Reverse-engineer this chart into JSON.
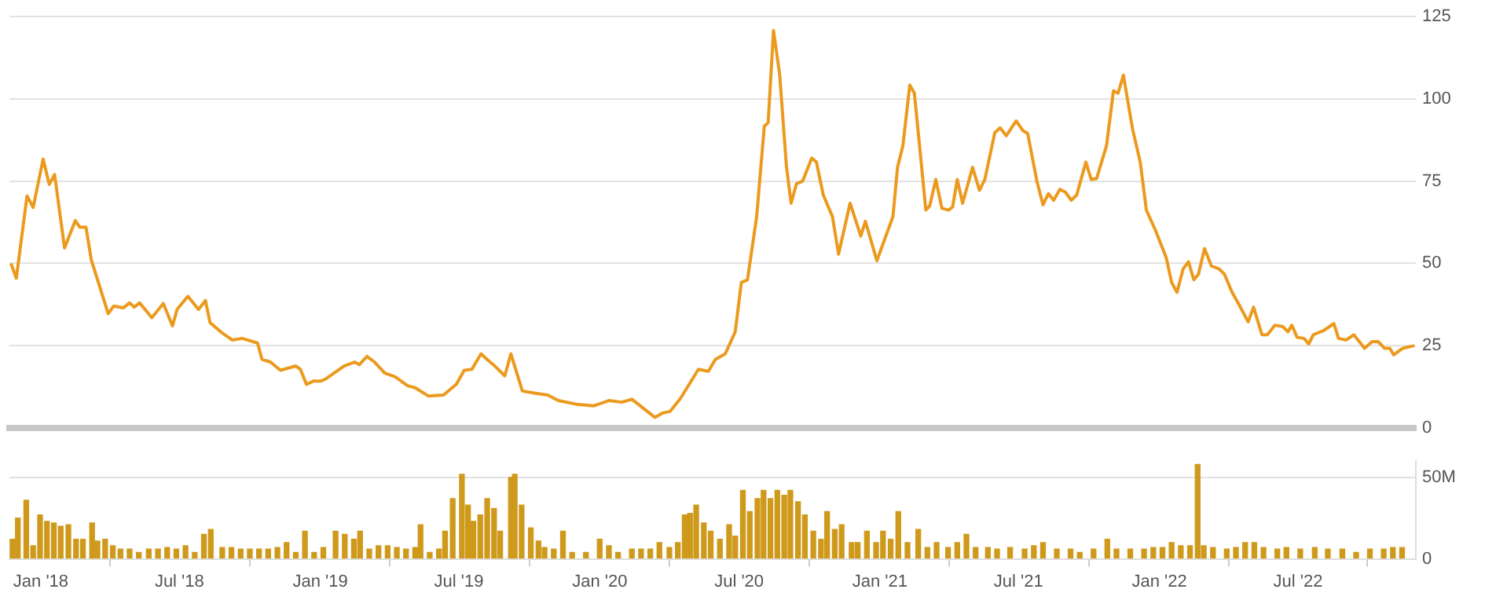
{
  "chart_data": [
    {
      "type": "line",
      "color": "#eb9a1e",
      "marker": "none",
      "grid": "y",
      "tick_labels": "y",
      "xlim": [
        "2017-11-21",
        "2022-12-02"
      ],
      "ylim": [
        0,
        125
      ],
      "yticks": [
        0,
        25,
        50,
        75,
        100,
        125
      ],
      "x": [
        "2017-11-23",
        "2017-11-30",
        "2017-12-14",
        "2017-12-22",
        "2018-01-04",
        "2018-01-12",
        "2018-01-19",
        "2018-02-01",
        "2018-02-15",
        "2018-02-21",
        "2018-03-01",
        "2018-03-08",
        "2018-03-30",
        "2018-04-06",
        "2018-04-19",
        "2018-04-27",
        "2018-05-03",
        "2018-05-10",
        "2018-05-26",
        "2018-06-10",
        "2018-06-22",
        "2018-06-28",
        "2018-07-12",
        "2018-07-26",
        "2018-08-04",
        "2018-08-10",
        "2018-08-25",
        "2018-09-08",
        "2018-09-21",
        "2018-10-11",
        "2018-10-17",
        "2018-10-28",
        "2018-11-10",
        "2018-11-30",
        "2018-12-06",
        "2018-12-14",
        "2018-12-23",
        "2019-01-02",
        "2019-01-09",
        "2019-02-01",
        "2019-02-15",
        "2019-02-21",
        "2019-03-03",
        "2019-03-13",
        "2019-03-26",
        "2019-04-09",
        "2019-04-25",
        "2019-05-05",
        "2019-05-22",
        "2019-06-11",
        "2019-06-28",
        "2019-07-08",
        "2019-07-18",
        "2019-07-30",
        "2019-08-07",
        "2019-08-17",
        "2019-08-30",
        "2019-09-07",
        "2019-09-22",
        "2019-10-09",
        "2019-10-25",
        "2019-11-08",
        "2019-12-01",
        "2019-12-24",
        "2020-01-13",
        "2020-01-30",
        "2020-02-12",
        "2020-03-13",
        "2020-03-23",
        "2020-04-02",
        "2020-04-15",
        "2020-05-09",
        "2020-05-22",
        "2020-05-31",
        "2020-06-13",
        "2020-06-26",
        "2020-07-04",
        "2020-07-12",
        "2020-07-24",
        "2020-08-03",
        "2020-08-08",
        "2020-08-15",
        "2020-08-23",
        "2020-09-01",
        "2020-09-07",
        "2020-09-14",
        "2020-09-22",
        "2020-10-04",
        "2020-10-10",
        "2020-10-19",
        "2020-10-31",
        "2020-11-08",
        "2020-11-23",
        "2020-12-07",
        "2020-12-13",
        "2020-12-28",
        "2021-01-18",
        "2021-01-24",
        "2021-01-31",
        "2021-02-09",
        "2021-02-15",
        "2021-03-02",
        "2021-03-07",
        "2021-03-15",
        "2021-03-23",
        "2021-04-01",
        "2021-04-06",
        "2021-04-12",
        "2021-04-19",
        "2021-05-02",
        "2021-05-11",
        "2021-05-18",
        "2021-05-31",
        "2021-06-07",
        "2021-06-15",
        "2021-06-28",
        "2021-07-07",
        "2021-07-13",
        "2021-07-25",
        "2021-08-02",
        "2021-08-09",
        "2021-08-16",
        "2021-08-24",
        "2021-08-31",
        "2021-09-08",
        "2021-09-15",
        "2021-09-27",
        "2021-10-04",
        "2021-10-11",
        "2021-10-24",
        "2021-11-02",
        "2021-11-08",
        "2021-11-15",
        "2021-11-27",
        "2021-12-07",
        "2021-12-15",
        "2021-12-27",
        "2022-01-10",
        "2022-01-17",
        "2022-01-24",
        "2022-02-01",
        "2022-02-08",
        "2022-02-15",
        "2022-02-21",
        "2022-03-01",
        "2022-03-10",
        "2022-03-20",
        "2022-03-27",
        "2022-04-06",
        "2022-04-15",
        "2022-04-27",
        "2022-05-04",
        "2022-05-15",
        "2022-05-22",
        "2022-06-01",
        "2022-06-11",
        "2022-06-18",
        "2022-06-23",
        "2022-06-30",
        "2022-07-09",
        "2022-07-15",
        "2022-07-21",
        "2022-08-03",
        "2022-08-17",
        "2022-08-23",
        "2022-09-02",
        "2022-09-12",
        "2022-09-26",
        "2022-10-06",
        "2022-10-14",
        "2022-10-22",
        "2022-10-29",
        "2022-11-03",
        "2022-11-15",
        "2022-11-30"
      ],
      "values": [
        50,
        45.5,
        70.5,
        67,
        81.7,
        74,
        77,
        54.7,
        63,
        61,
        61,
        51,
        34.7,
        37,
        36.5,
        38,
        36.7,
        38,
        33.5,
        37.8,
        31,
        36,
        40,
        36,
        38.7,
        32,
        29,
        26.7,
        27.2,
        25.8,
        20.8,
        20,
        17.5,
        18.8,
        17.8,
        13.2,
        14.2,
        14.2,
        15,
        18.8,
        20,
        19.2,
        21.7,
        20,
        16.7,
        15.5,
        12.8,
        12.2,
        9.7,
        10,
        13.3,
        17.5,
        17.8,
        22.5,
        20.8,
        18.8,
        15.8,
        22.5,
        11.2,
        10.5,
        10,
        8.3,
        7.2,
        6.7,
        8.3,
        7.8,
        8.7,
        3.2,
        4.5,
        5,
        8.8,
        17.8,
        17.2,
        20.8,
        22.5,
        29.2,
        44.2,
        45,
        64.2,
        91.7,
        92.8,
        120.8,
        107.5,
        79.2,
        68.3,
        74.2,
        75,
        82,
        80.8,
        70.8,
        64.2,
        52.8,
        68.3,
        58.3,
        62.8,
        50.8,
        64.2,
        79.2,
        85.8,
        104.2,
        101.7,
        66.2,
        67.5,
        75.5,
        66.7,
        66.2,
        67.2,
        75.5,
        68.3,
        79.2,
        72.2,
        75.5,
        89.7,
        91.2,
        88.8,
        93.3,
        90.3,
        89.5,
        75,
        67.8,
        71.2,
        69.2,
        72.5,
        71.7,
        69.2,
        70.8,
        80.8,
        75.5,
        75.8,
        85.8,
        102.5,
        101.7,
        107.2,
        90.8,
        80.8,
        66.2,
        60,
        51.7,
        44.2,
        41.2,
        48.3,
        50.5,
        45,
        46.7,
        54.5,
        49.2,
        48.3,
        46.7,
        41.2,
        37.5,
        32.2,
        36.7,
        28.3,
        28.3,
        31.2,
        30.8,
        29.2,
        31.2,
        27.5,
        27.2,
        25.5,
        28.3,
        29.5,
        31.7,
        27.2,
        26.7,
        28.3,
        24.2,
        26.2,
        26.2,
        24.2,
        24.2,
        22.2,
        24.2,
        25
      ]
    },
    {
      "type": "bar",
      "color": "#cf9a1c",
      "grid": "y",
      "xlim": [
        "2017-11-21",
        "2022-12-02"
      ],
      "xticks": [
        {
          "value": "2018-01-01",
          "label": "Jan '18"
        },
        {
          "value": "2018-07-01",
          "label": "Jul '18"
        },
        {
          "value": "2019-01-01",
          "label": "Jan '19"
        },
        {
          "value": "2019-07-01",
          "label": "Jul '19"
        },
        {
          "value": "2020-01-01",
          "label": "Jan '20"
        },
        {
          "value": "2020-07-01",
          "label": "Jul '20"
        },
        {
          "value": "2021-01-01",
          "label": "Jan '21"
        },
        {
          "value": "2021-07-01",
          "label": "Jul '21"
        },
        {
          "value": "2022-01-01",
          "label": "Jan '22"
        },
        {
          "value": "2022-07-01",
          "label": "Jul '22"
        }
      ],
      "ylim": [
        0,
        60
      ],
      "yticks": [
        0,
        {
          "value": 50,
          "label": "50M"
        }
      ],
      "x": [
        "2017-11-25",
        "2017-12-02",
        "2017-12-13",
        "2017-12-22",
        "2017-12-31",
        "2018-01-09",
        "2018-01-18",
        "2018-01-27",
        "2018-02-06",
        "2018-02-16",
        "2018-02-25",
        "2018-03-09",
        "2018-03-16",
        "2018-03-26",
        "2018-04-05",
        "2018-04-15",
        "2018-04-27",
        "2018-05-09",
        "2018-05-22",
        "2018-06-03",
        "2018-06-15",
        "2018-06-27",
        "2018-07-09",
        "2018-07-21",
        "2018-08-02",
        "2018-08-11",
        "2018-08-26",
        "2018-09-07",
        "2018-09-19",
        "2018-10-01",
        "2018-10-13",
        "2018-10-25",
        "2018-11-06",
        "2018-11-18",
        "2018-11-30",
        "2018-12-12",
        "2018-12-24",
        "2019-01-05",
        "2019-01-21",
        "2019-02-02",
        "2019-02-14",
        "2019-02-22",
        "2019-03-06",
        "2019-03-18",
        "2019-03-30",
        "2019-04-11",
        "2019-04-23",
        "2019-05-05",
        "2019-05-12",
        "2019-05-24",
        "2019-06-05",
        "2019-06-13",
        "2019-06-23",
        "2019-07-05",
        "2019-07-13",
        "2019-07-20",
        "2019-07-29",
        "2019-08-07",
        "2019-08-16",
        "2019-08-24",
        "2019-09-07",
        "2019-09-12",
        "2019-09-21",
        "2019-10-03",
        "2019-10-13",
        "2019-10-21",
        "2019-11-02",
        "2019-11-14",
        "2019-11-26",
        "2019-12-14",
        "2020-01-01",
        "2020-01-13",
        "2020-01-25",
        "2020-02-12",
        "2020-02-24",
        "2020-03-07",
        "2020-03-19",
        "2020-04-01",
        "2020-04-12",
        "2020-04-21",
        "2020-04-28",
        "2020-05-06",
        "2020-05-16",
        "2020-05-25",
        "2020-06-06",
        "2020-06-18",
        "2020-06-26",
        "2020-07-06",
        "2020-07-15",
        "2020-07-25",
        "2020-08-02",
        "2020-08-11",
        "2020-08-20",
        "2020-08-29",
        "2020-09-06",
        "2020-09-16",
        "2020-09-25",
        "2020-10-06",
        "2020-10-16",
        "2020-10-24",
        "2020-11-03",
        "2020-11-12",
        "2020-11-25",
        "2020-12-03",
        "2020-12-15",
        "2020-12-27",
        "2021-01-05",
        "2021-01-15",
        "2021-01-25",
        "2021-02-06",
        "2021-02-20",
        "2021-03-04",
        "2021-03-16",
        "2021-03-31",
        "2021-04-12",
        "2021-04-24",
        "2021-05-06",
        "2021-05-22",
        "2021-06-03",
        "2021-06-20",
        "2021-07-09",
        "2021-07-21",
        "2021-08-02",
        "2021-08-20",
        "2021-09-07",
        "2021-09-19",
        "2021-10-07",
        "2021-10-25",
        "2021-11-06",
        "2021-11-24",
        "2021-12-12",
        "2021-12-24",
        "2022-01-05",
        "2022-01-17",
        "2022-01-29",
        "2022-02-10",
        "2022-02-20",
        "2022-02-28",
        "2022-03-12",
        "2022-03-30",
        "2022-04-11",
        "2022-04-23",
        "2022-05-05",
        "2022-05-17",
        "2022-06-04",
        "2022-06-16",
        "2022-07-04",
        "2022-07-23",
        "2022-08-09",
        "2022-08-28",
        "2022-09-15",
        "2022-10-03",
        "2022-10-21",
        "2022-11-02",
        "2022-11-14"
      ],
      "values": [
        12,
        25,
        36,
        8,
        27,
        23,
        22,
        20,
        21,
        12,
        12,
        22,
        11,
        12,
        8,
        6,
        6,
        4,
        6,
        6,
        7,
        6,
        8,
        4,
        15,
        18,
        7,
        7,
        6,
        6,
        6,
        6,
        7,
        10,
        4,
        17,
        4,
        7,
        17,
        15,
        12,
        17,
        6,
        8,
        8,
        7,
        6,
        7,
        21,
        4,
        6,
        17,
        37,
        52,
        33,
        23,
        27,
        37,
        31,
        17,
        50,
        52,
        33,
        19,
        11,
        7,
        6,
        17,
        4,
        4,
        12,
        8,
        4,
        6,
        6,
        6,
        10,
        7,
        10,
        27,
        28,
        33,
        22,
        17,
        12,
        21,
        14,
        42,
        29,
        37,
        42,
        37,
        42,
        39,
        42,
        35,
        27,
        17,
        12,
        29,
        18,
        21,
        10,
        10,
        17,
        10,
        17,
        12,
        29,
        10,
        18,
        7,
        10,
        7,
        10,
        15,
        7,
        7,
        6,
        7,
        6,
        8,
        10,
        6,
        6,
        4,
        6,
        12,
        6,
        6,
        6,
        7,
        7,
        10,
        8,
        8,
        58,
        8,
        7,
        6,
        7,
        10,
        10,
        7,
        6,
        7,
        6,
        7,
        6,
        6,
        4,
        6,
        6,
        7,
        7
      ]
    }
  ]
}
